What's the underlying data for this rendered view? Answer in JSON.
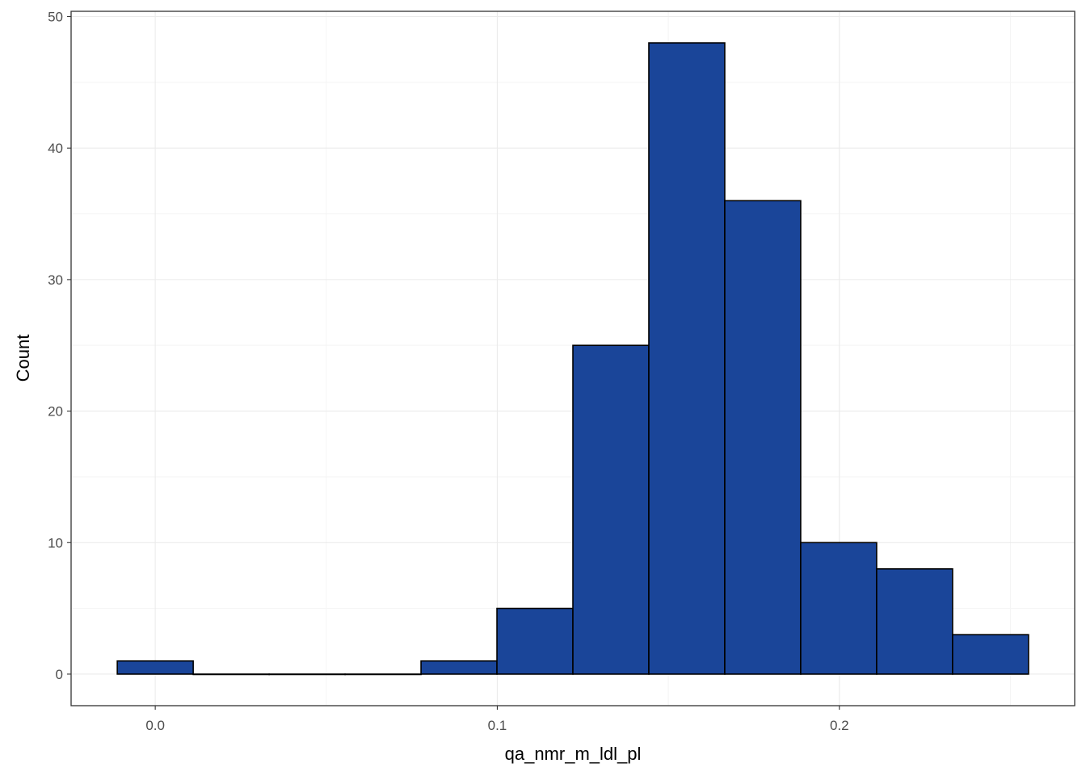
{
  "chart_data": {
    "type": "bar",
    "subtype": "histogram",
    "title": "",
    "xlabel": "qa_nmr_m_ldl_pl",
    "ylabel": "Count",
    "bin_width": 0.0222,
    "bins": [
      {
        "x_start": -0.0111,
        "x_end": 0.0111,
        "count": 1
      },
      {
        "x_start": 0.0111,
        "x_end": 0.0333,
        "count": 0
      },
      {
        "x_start": 0.0333,
        "x_end": 0.0555,
        "count": 0
      },
      {
        "x_start": 0.0555,
        "x_end": 0.0777,
        "count": 0
      },
      {
        "x_start": 0.0777,
        "x_end": 0.0999,
        "count": 1
      },
      {
        "x_start": 0.0999,
        "x_end": 0.1221,
        "count": 5
      },
      {
        "x_start": 0.1221,
        "x_end": 0.1443,
        "count": 25
      },
      {
        "x_start": 0.1443,
        "x_end": 0.1665,
        "count": 48
      },
      {
        "x_start": 0.1665,
        "x_end": 0.1887,
        "count": 36
      },
      {
        "x_start": 0.1887,
        "x_end": 0.2109,
        "count": 10
      },
      {
        "x_start": 0.2109,
        "x_end": 0.2331,
        "count": 8
      },
      {
        "x_start": 0.2331,
        "x_end": 0.2553,
        "count": 3
      }
    ],
    "xlim": [
      -0.0246,
      0.2688
    ],
    "ylim": [
      -2.4,
      50.4
    ],
    "x_ticks": [
      {
        "value": 0.0,
        "label": "0.0"
      },
      {
        "value": 0.1,
        "label": "0.1"
      },
      {
        "value": 0.2,
        "label": "0.2"
      }
    ],
    "y_ticks": [
      {
        "value": 0,
        "label": "0"
      },
      {
        "value": 10,
        "label": "10"
      },
      {
        "value": 20,
        "label": "20"
      },
      {
        "value": 30,
        "label": "30"
      },
      {
        "value": 40,
        "label": "40"
      },
      {
        "value": 50,
        "label": "50"
      }
    ],
    "grid": true,
    "colors": {
      "bar_fill": "#1a4599",
      "bar_stroke": "#000000",
      "grid_major": "#ebebeb",
      "grid_minor": "#f5f5f5",
      "panel_border": "#333333"
    }
  }
}
